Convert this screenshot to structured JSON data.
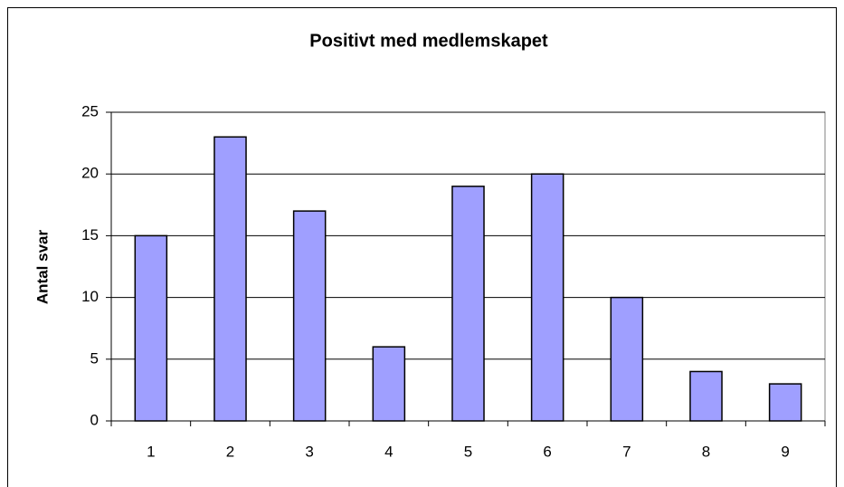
{
  "chart_data": {
    "type": "bar",
    "title": "Positivt med medlemskapet",
    "y_label": "Antal svar",
    "categories": [
      "1",
      "2",
      "3",
      "4",
      "5",
      "6",
      "7",
      "8",
      "9"
    ],
    "values": [
      15,
      23,
      17,
      6,
      19,
      20,
      10,
      4,
      3
    ],
    "color": "#9f9fff",
    "ylim": [
      0,
      25
    ],
    "yticks": [
      0,
      5,
      10,
      15,
      20,
      25
    ],
    "grid": true
  }
}
